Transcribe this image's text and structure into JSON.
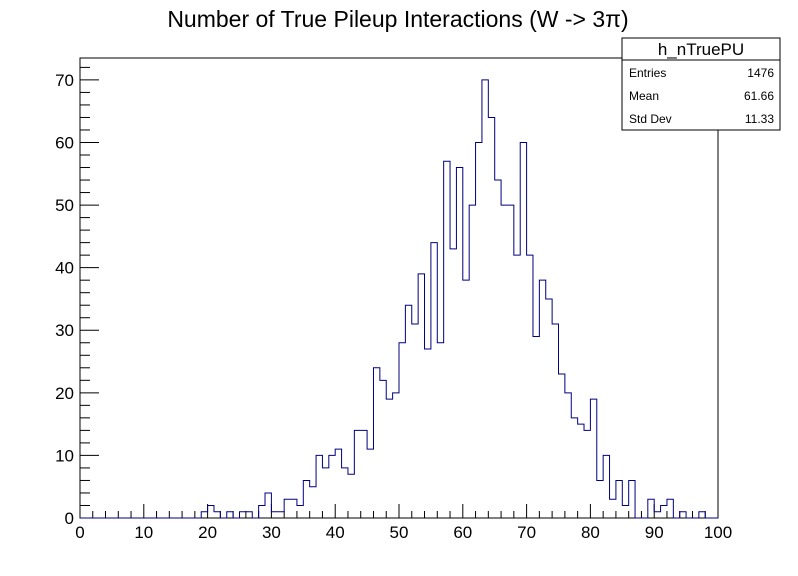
{
  "chart_data": {
    "type": "bar",
    "title": "Number of True Pileup Interactions (W -> 3π)",
    "xlabel": "",
    "ylabel": "",
    "xlim": [
      0,
      100
    ],
    "ylim": [
      0,
      73.5
    ],
    "bin_width": 1,
    "x_ticks": [
      "0",
      "10",
      "20",
      "30",
      "40",
      "50",
      "60",
      "70",
      "80",
      "90",
      "100"
    ],
    "y_ticks": [
      "0",
      "10",
      "20",
      "30",
      "40",
      "50",
      "60",
      "70"
    ],
    "line_color": "#000080",
    "grid": false,
    "series": [
      {
        "values": [
          0,
          0,
          0,
          0,
          0,
          0,
          0,
          0,
          0,
          0,
          0,
          0,
          0,
          0,
          0,
          0,
          0,
          0,
          0,
          1,
          2,
          1,
          0,
          1,
          0,
          1,
          1,
          0,
          2,
          4,
          1,
          1,
          3,
          3,
          2,
          6,
          5,
          10,
          8,
          10,
          11,
          8,
          7,
          14,
          14,
          11,
          24,
          22,
          19,
          20,
          28,
          34,
          31,
          39,
          27,
          44,
          28,
          57,
          43,
          56,
          38,
          50,
          60,
          70,
          64,
          54,
          50,
          50,
          42,
          60,
          42,
          29,
          38,
          35,
          31,
          23,
          20,
          16,
          15,
          14,
          19,
          6,
          10,
          3,
          6,
          2,
          6,
          0,
          0,
          3,
          1,
          2,
          3,
          0,
          1,
          0,
          0,
          1,
          0,
          0
        ]
      }
    ],
    "stats_box": {
      "name": "h_nTruePU",
      "position": "top-right",
      "rows": [
        {
          "label": "Entries",
          "value": "1476"
        },
        {
          "label": "Mean",
          "value": "61.66"
        },
        {
          "label": "Std Dev",
          "value": "11.33"
        }
      ]
    }
  }
}
